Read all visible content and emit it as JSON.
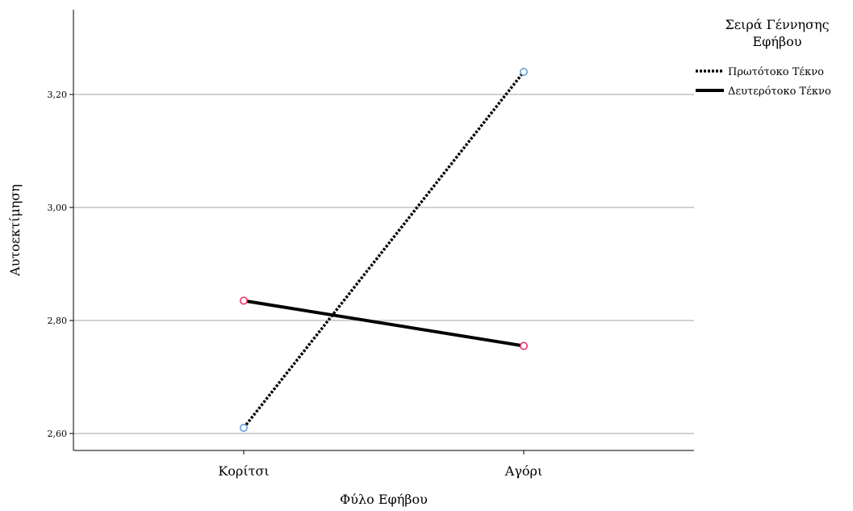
{
  "chart_data": {
    "type": "line",
    "categories": [
      "Κορίτσι",
      "Αγόρι"
    ],
    "series": [
      {
        "name": "Πρωτότοκο Τέκνο",
        "values": [
          2.61,
          3.24
        ],
        "line_style": "dotted",
        "marker_color": "#5b9bd5"
      },
      {
        "name": "Δευτερότοκο Τέκνο",
        "values": [
          2.835,
          2.755
        ],
        "line_style": "solid",
        "marker_color": "#e8245c"
      }
    ],
    "xlabel": "Φύλο Εφήβου",
    "ylabel": "Αυτοεκτίμηση",
    "ylim": [
      2.57,
      3.35
    ],
    "yticks": [
      2.6,
      2.8,
      3.0,
      3.2
    ],
    "ytick_labels": [
      "2,60",
      "2,80",
      "3,00",
      "3,20"
    ],
    "grid": true,
    "legend": {
      "title_lines": [
        "Σειρά Γέννησης",
        "Εφήβου"
      ],
      "placement": "top-right"
    }
  }
}
